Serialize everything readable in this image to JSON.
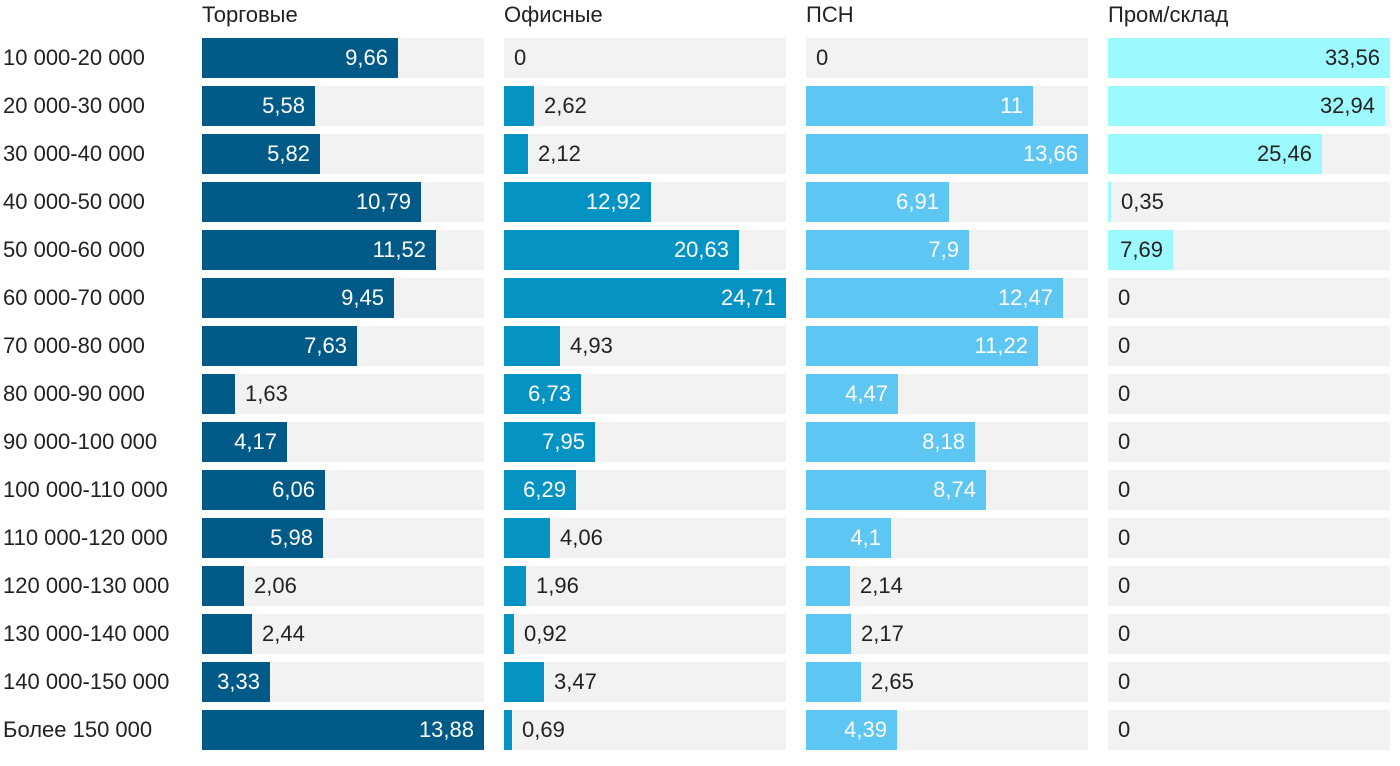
{
  "chart_data": {
    "type": "bar",
    "orientation": "horizontal",
    "layout": "small-multiples",
    "categories": [
      "10 000-20 000",
      "20 000-30 000",
      "30 000-40 000",
      "40 000-50 000",
      "50 000-60 000",
      "60 000-70 000",
      "70 000-80 000",
      "80 000-90 000",
      "90 000-100 000",
      "100 000-110 000",
      "110 000-120 000",
      "120 000-130 000",
      "130 000-140 000",
      "140 000-150 000",
      "Более 150 000"
    ],
    "series": [
      {
        "name": "Торговые",
        "color": "#005a87",
        "max": 13.88,
        "values": [
          9.66,
          5.58,
          5.82,
          10.79,
          11.52,
          9.45,
          7.63,
          1.63,
          4.17,
          6.06,
          5.98,
          2.06,
          2.44,
          3.33,
          13.88
        ],
        "labels": [
          "9,66",
          "5,58",
          "5,82",
          "10,79",
          "11,52",
          "9,45",
          "7,63",
          "1,63",
          "4,17",
          "6,06",
          "5,98",
          "2,06",
          "2,44",
          "3,33",
          "13,88"
        ]
      },
      {
        "name": "Офисные",
        "color": "#0493c3",
        "max": 24.71,
        "values": [
          0,
          2.62,
          2.12,
          12.92,
          20.63,
          24.71,
          4.93,
          6.73,
          7.95,
          6.29,
          4.06,
          1.96,
          0.92,
          3.47,
          0.69
        ],
        "labels": [
          "0",
          "2,62",
          "2,12",
          "12,92",
          "20,63",
          "24,71",
          "4,93",
          "6,73",
          "7,95",
          "6,29",
          "4,06",
          "1,96",
          "0,92",
          "3,47",
          "0,69"
        ]
      },
      {
        "name": "ПСН",
        "color": "#5ec6f3",
        "max": 13.66,
        "values": [
          0,
          11,
          13.66,
          6.91,
          7.9,
          12.47,
          11.22,
          4.47,
          8.18,
          8.74,
          4.1,
          2.14,
          2.17,
          2.65,
          4.39
        ],
        "labels": [
          "0",
          "11",
          "13,66",
          "6,91",
          "7,9",
          "12,47",
          "11,22",
          "4,47",
          "8,18",
          "8,74",
          "4,1",
          "2,14",
          "2,17",
          "2,65",
          "4,39"
        ]
      },
      {
        "name": "Пром/склад",
        "color": "#9cfaff",
        "text_on_bar": "#222222",
        "max": 33.56,
        "values": [
          33.56,
          32.94,
          25.46,
          0.35,
          7.69,
          0,
          0,
          0,
          0,
          0,
          0,
          0,
          0,
          0,
          0
        ],
        "labels": [
          "33,56",
          "32,94",
          "25,46",
          "0,35",
          "7,69",
          "0",
          "0",
          "0",
          "0",
          "0",
          "0",
          "0",
          "0",
          "0",
          "0"
        ]
      }
    ],
    "track_color": "#f2f2f2",
    "grid": false,
    "legend": "none"
  }
}
